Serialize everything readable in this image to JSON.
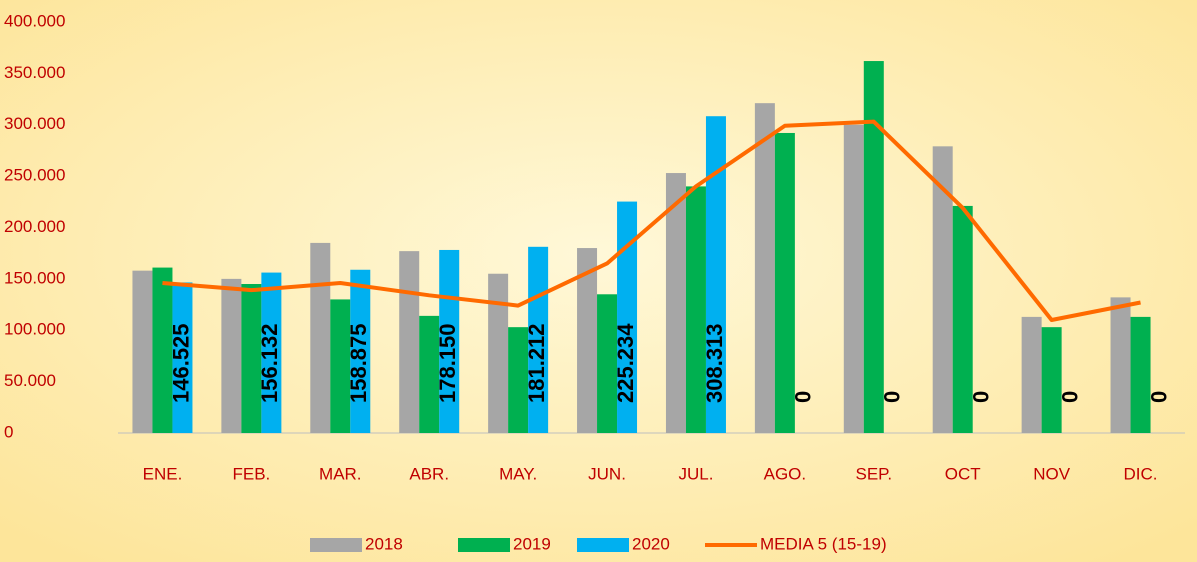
{
  "chart_data": {
    "type": "bar",
    "categories": [
      "ENE.",
      "FEB.",
      "MAR.",
      "ABR.",
      "MAY.",
      "JUN.",
      "JUL.",
      "AGO.",
      "SEP.",
      "OCT",
      "NOV",
      "DIC."
    ],
    "series": [
      {
        "name": "2018",
        "color": "#a6a6a6",
        "values": [
          158000,
          150000,
          185000,
          177000,
          155000,
          180000,
          253000,
          321000,
          300000,
          279000,
          113000,
          132000
        ]
      },
      {
        "name": "2019",
        "color": "#00b050",
        "values": [
          161000,
          145000,
          130000,
          114000,
          103000,
          135000,
          240000,
          292000,
          362000,
          221000,
          103000,
          113000
        ]
      },
      {
        "name": "2020",
        "color": "#00b0f0",
        "values": [
          146525,
          156132,
          158875,
          178150,
          181212,
          225234,
          308313,
          0,
          0,
          0,
          0,
          0
        ],
        "value_labels": [
          "146.525",
          "156.132",
          "158.875",
          "178.150",
          "181.212",
          "225.234",
          "308.313",
          "0",
          "0",
          "0",
          "0",
          "0"
        ]
      },
      {
        "name": "MEDIA 5 (15-19)",
        "type": "line",
        "color": "#ff6a00",
        "values": [
          146000,
          139000,
          146000,
          134000,
          124000,
          165000,
          240000,
          299000,
          303000,
          219000,
          110000,
          127000
        ]
      }
    ],
    "ylim": [
      0,
      400000
    ],
    "yticks": [
      0,
      {
        "value": 50000,
        "label": "50.000"
      },
      {
        "value": 100000,
        "label": "100.000"
      },
      {
        "value": 150000,
        "label": "150.000"
      },
      {
        "value": 200000,
        "label": "200.000"
      },
      {
        "value": 250000,
        "label": "250.000"
      },
      {
        "value": 300000,
        "label": "300.000"
      },
      {
        "value": 350000,
        "label": "350.000"
      },
      {
        "value": 400000,
        "label": "400.000"
      }
    ]
  }
}
